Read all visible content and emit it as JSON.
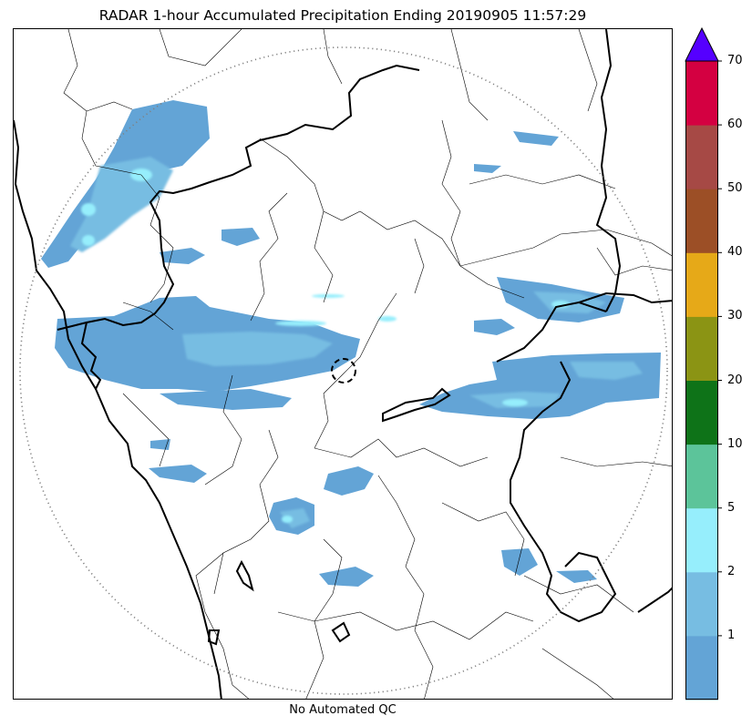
{
  "title": "RADAR 1-hour Accumulated Precipitation Ending 20190905 11:57:29",
  "footer_note": "No Automated QC",
  "colorbar": {
    "extend": "max",
    "over_color": "#5500ff",
    "bins": [
      {
        "from": 0,
        "to": 1,
        "color": "#63a4d6"
      },
      {
        "from": 1,
        "to": 2,
        "color": "#77bde2"
      },
      {
        "from": 2,
        "to": 5,
        "color": "#96eefc"
      },
      {
        "from": 5,
        "to": 10,
        "color": "#5cc49a"
      },
      {
        "from": 10,
        "to": 20,
        "color": "#0e7318"
      },
      {
        "from": 20,
        "to": 30,
        "color": "#8b9414"
      },
      {
        "from": 30,
        "to": 40,
        "color": "#e6a918"
      },
      {
        "from": 40,
        "to": 50,
        "color": "#9c4f26"
      },
      {
        "from": 50,
        "to": 60,
        "color": "#a64945"
      },
      {
        "from": 60,
        "to": 70,
        "color": "#d40041"
      }
    ],
    "ticks": [
      {
        "label": "1",
        "bin_index": 1
      },
      {
        "label": "2",
        "bin_index": 2
      },
      {
        "label": "5",
        "bin_index": 3
      },
      {
        "label": "10",
        "bin_index": 4
      },
      {
        "label": "20",
        "bin_index": 5
      },
      {
        "label": "30",
        "bin_index": 6
      },
      {
        "label": "40",
        "bin_index": 7
      },
      {
        "label": "50",
        "bin_index": 8
      },
      {
        "label": "60",
        "bin_index": 9
      },
      {
        "label": "70",
        "bin_index": 10
      }
    ]
  },
  "map": {
    "range_ring": "dotted circle",
    "radar_site_marker": "dashed circle",
    "colors": {
      "light_rain": "#63a4d6",
      "moderate_rain": "#77bde2",
      "heavy_rain": "#96eefc",
      "boundaries": "#000000"
    }
  }
}
